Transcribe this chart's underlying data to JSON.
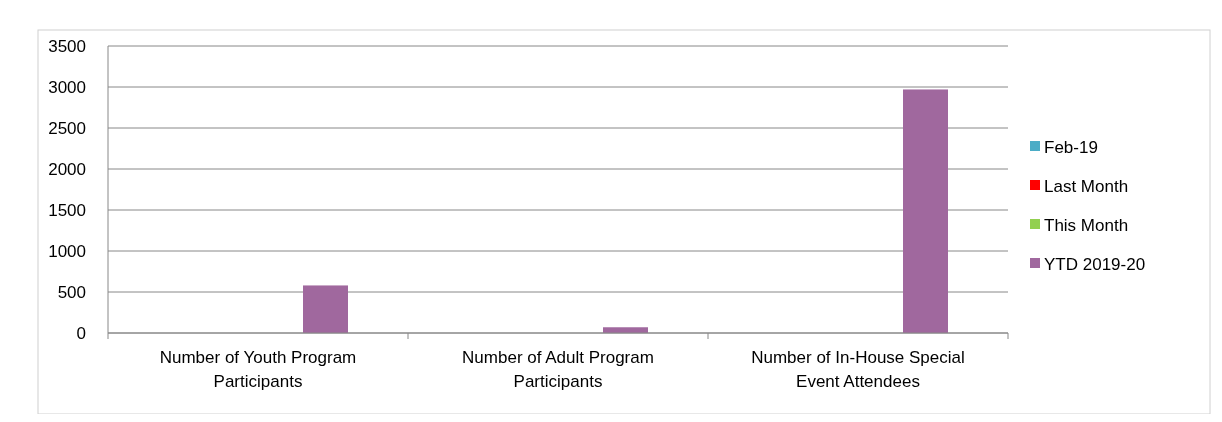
{
  "chart_data": {
    "type": "bar",
    "categories": [
      "Number of Youth Program Participants",
      "Number of Adult Program Participants",
      "Number of In-House Special Event Attendees"
    ],
    "series": [
      {
        "name": "Feb-19",
        "color": "#4bacc6",
        "values": [
          0,
          0,
          0
        ]
      },
      {
        "name": "Last Month",
        "color": "#ff0000",
        "values": [
          0,
          0,
          0
        ]
      },
      {
        "name": "This Month",
        "color": "#92d050",
        "values": [
          0,
          0,
          0
        ]
      },
      {
        "name": "YTD 2019-20",
        "color": "#a0689e",
        "values": [
          580,
          70,
          2970
        ]
      }
    ],
    "ylim": [
      0,
      3500
    ],
    "yticks": [
      0,
      500,
      1000,
      1500,
      2000,
      2500,
      3000,
      3500
    ],
    "grid": "y",
    "legend": "right"
  }
}
